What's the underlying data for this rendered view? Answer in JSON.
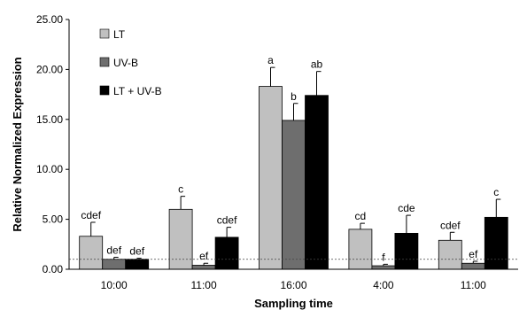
{
  "chart_data": {
    "type": "bar",
    "xlabel": "Sampling time",
    "ylabel": "Relative Normalized Expression",
    "ylim": [
      0,
      25
    ],
    "yticks": [
      "0.00",
      "5.00",
      "10.00",
      "15.00",
      "20.00",
      "25.00"
    ],
    "categories": [
      "10:00",
      "11:00",
      "16:00",
      "4:00",
      "11:00"
    ],
    "series": [
      {
        "name": "LT",
        "color": "#c0c0c0",
        "values": [
          3.3,
          6.0,
          18.3,
          4.0,
          2.9
        ],
        "errors": [
          1.4,
          1.3,
          1.9,
          0.6,
          0.8
        ],
        "letters": [
          "cdef",
          "c",
          "a",
          "cd",
          "cdef"
        ]
      },
      {
        "name": "UV-B",
        "color": "#6e6e6e",
        "values": [
          1.0,
          0.4,
          14.9,
          0.35,
          0.6
        ],
        "errors": [
          0.2,
          0.2,
          1.7,
          0.15,
          0.2
        ],
        "letters": [
          "def",
          "ef",
          "b",
          "f",
          "ef"
        ]
      },
      {
        "name": "LT + UV-B",
        "color": "#000000",
        "values": [
          1.0,
          3.2,
          17.4,
          3.6,
          5.2
        ],
        "errors": [
          0.1,
          1.0,
          2.4,
          1.8,
          1.8
        ],
        "letters": [
          "def",
          "cdef",
          "ab",
          "cde",
          "c"
        ]
      }
    ],
    "reference_line": 1.0,
    "legend_position": "top-left",
    "grid": false
  }
}
